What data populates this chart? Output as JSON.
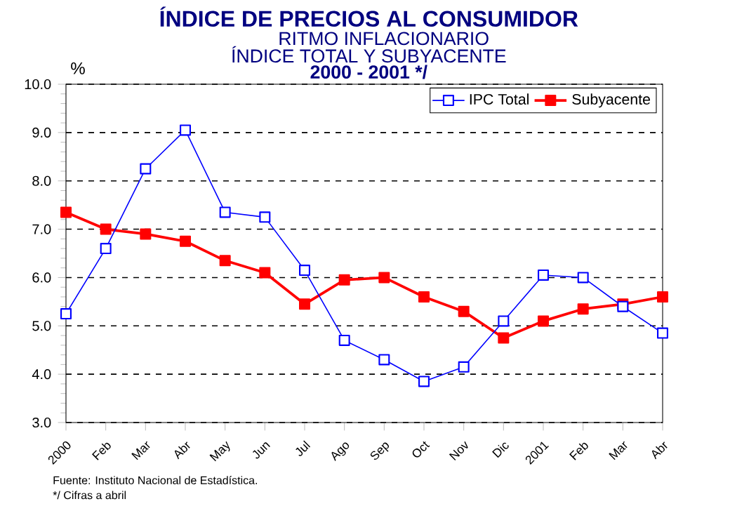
{
  "chart_data": {
    "type": "line",
    "title": "ÍNDICE DE PRECIOS AL CONSUMIDOR",
    "subtitle": "RITMO INFLACIONARIO",
    "ylabel": "%",
    "categories": [
      "2000",
      "Feb",
      "Mar",
      "Abr",
      "May",
      "Jun",
      "Jul",
      "Ago",
      "Sep",
      "Oct",
      "Nov",
      "Dic",
      "2001",
      "Feb",
      "Mar",
      "Abr"
    ],
    "series": [
      {
        "name": "IPC Total",
        "color": "#0000ff",
        "values": [
          5.25,
          6.6,
          8.25,
          9.05,
          7.35,
          7.25,
          6.15,
          4.7,
          4.3,
          3.85,
          4.15,
          5.1,
          6.05,
          6.0,
          5.4,
          4.85
        ]
      },
      {
        "name": "Subyacente",
        "color": "#ff0000",
        "values": [
          7.35,
          7.0,
          6.9,
          6.75,
          6.35,
          6.1,
          5.45,
          5.95,
          6.0,
          5.6,
          5.3,
          4.75,
          5.1,
          5.35,
          5.45,
          5.6
        ]
      }
    ],
    "ylim": [
      3,
      10
    ],
    "yticks": [
      {
        "value": 3,
        "label": "3.0"
      },
      {
        "value": 4,
        "label": "4.0"
      },
      {
        "value": 5,
        "label": "5.0"
      },
      {
        "value": 6,
        "label": "6.0"
      },
      {
        "value": 7,
        "label": "7.0"
      },
      {
        "value": 8,
        "label": "8.0"
      },
      {
        "value": 9,
        "label": "9.0"
      },
      {
        "value": 10,
        "label": "10.0"
      }
    ],
    "grid": "y",
    "legend": "top right",
    "marker": "square",
    "line_style": "solid",
    "annotations": [
      "ÍNDICE TOTAL Y SUBYACENTE",
      "2000 - 2001 */",
      "Fuente: Instituto Nacional de Estadística.",
      "*/ Cifras a abril"
    ]
  }
}
